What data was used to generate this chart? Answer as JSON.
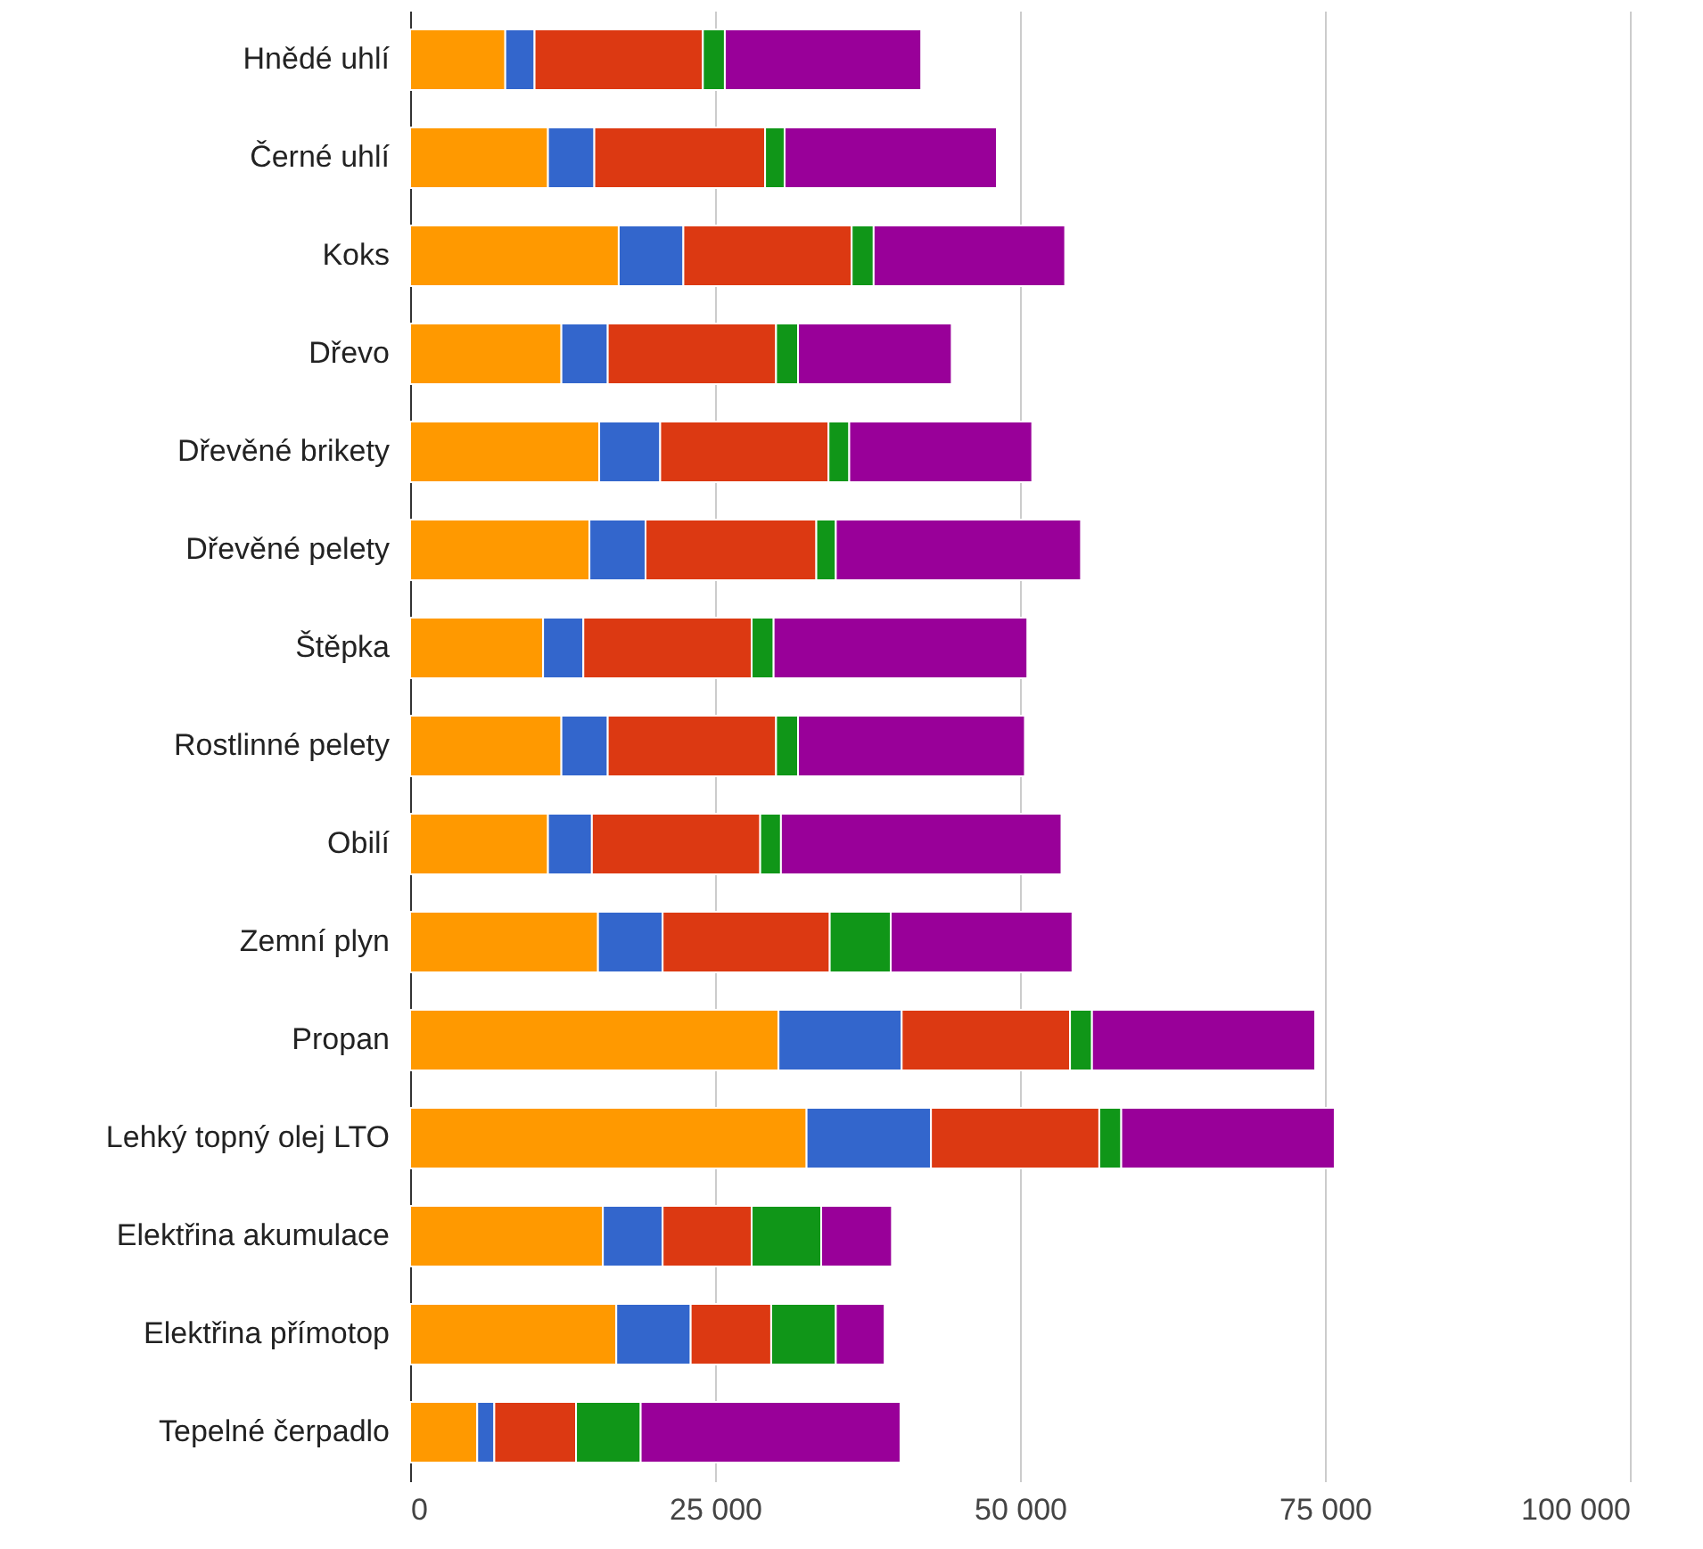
{
  "chart_data": {
    "type": "bar",
    "orientation": "horizontal",
    "stacked": true,
    "grid": "x",
    "categories": [
      "Hnědé uhlí",
      "Černé uhlí",
      "Koks",
      "Dřevo",
      "Dřevěné brikety",
      "Dřevěné pelety",
      "Štěpka",
      "Rostlinné pelety",
      "Obilí",
      "Zemní plyn",
      "Propan",
      "Lehký topný olej LTO",
      "Elektřina akumulace",
      "Elektřina přímotop",
      "Tepelné čerpadlo"
    ],
    "series": [
      {
        "color": "#ff9900",
        "values": [
          7800,
          11300,
          17100,
          12400,
          15500,
          14700,
          10900,
          12400,
          11300,
          15400,
          30200,
          32500,
          15800,
          16900,
          5500
        ]
      },
      {
        "color": "#3366cc",
        "values": [
          2400,
          3800,
          5300,
          3800,
          5000,
          4600,
          3300,
          3800,
          3600,
          5300,
          10100,
          10200,
          4900,
          6100,
          1400
        ]
      },
      {
        "color": "#dc3912",
        "values": [
          13800,
          14000,
          13800,
          13800,
          13800,
          14000,
          13800,
          13800,
          13800,
          13700,
          13800,
          13800,
          7300,
          6600,
          6700
        ]
      },
      {
        "color": "#109618",
        "values": [
          1800,
          1600,
          1800,
          1800,
          1700,
          1600,
          1800,
          1800,
          1700,
          5000,
          1800,
          1800,
          5700,
          5300,
          5300
        ]
      },
      {
        "color": "#990099",
        "values": [
          16100,
          17400,
          15700,
          12600,
          15000,
          20100,
          20800,
          18600,
          23000,
          14900,
          18300,
          17500,
          5800,
          4000,
          21300
        ]
      }
    ],
    "xlim": [
      0,
      100000
    ],
    "xticks": [
      0,
      {
        "value": 25000,
        "label": "25 000"
      },
      {
        "value": 50000,
        "label": "50 000"
      },
      {
        "value": 75000,
        "label": "75 000"
      },
      {
        "value": 100000,
        "label": "100 000"
      }
    ]
  }
}
